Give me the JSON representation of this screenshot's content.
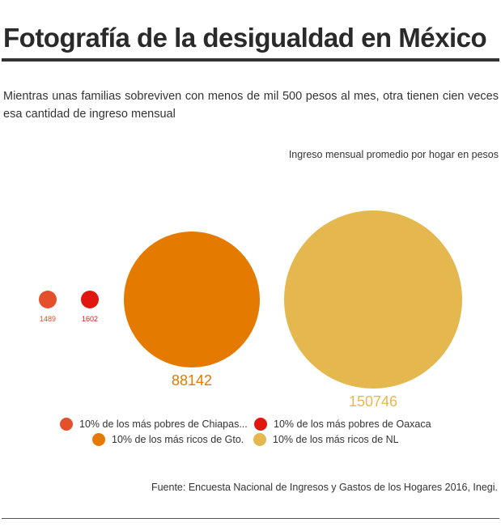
{
  "page": {
    "title": "Fotografía de la desigualdad en México",
    "subtitle": "Mientras unas familias sobreviven con menos de mil 500 pesos al mes, otra tienen cien veces esa cantidad de ingreso mensual",
    "source": "Fuente: Encuesta Nacional de Ingresos y Gastos de los Hogares 2016, Inegi."
  },
  "chart_data": {
    "type": "bubble",
    "title": "Ingreso mensual promedio por hogar en pesos",
    "series": [
      {
        "name": "10% de los más pobres de Chiapas...",
        "value": 1489,
        "label": "1489",
        "color": "#e4502c"
      },
      {
        "name": "10% de los más pobres de Oaxaca",
        "value": 1602,
        "label": "1602",
        "color": "#e0160f"
      },
      {
        "name": "10% de los más ricos de Gto.",
        "value": 88142,
        "label": "88142",
        "color": "#e47a00"
      },
      {
        "name": "10% de los más ricos de NL",
        "value": 150746,
        "label": "150746",
        "color": "#e5b84f"
      }
    ],
    "legend_position": "bottom"
  }
}
